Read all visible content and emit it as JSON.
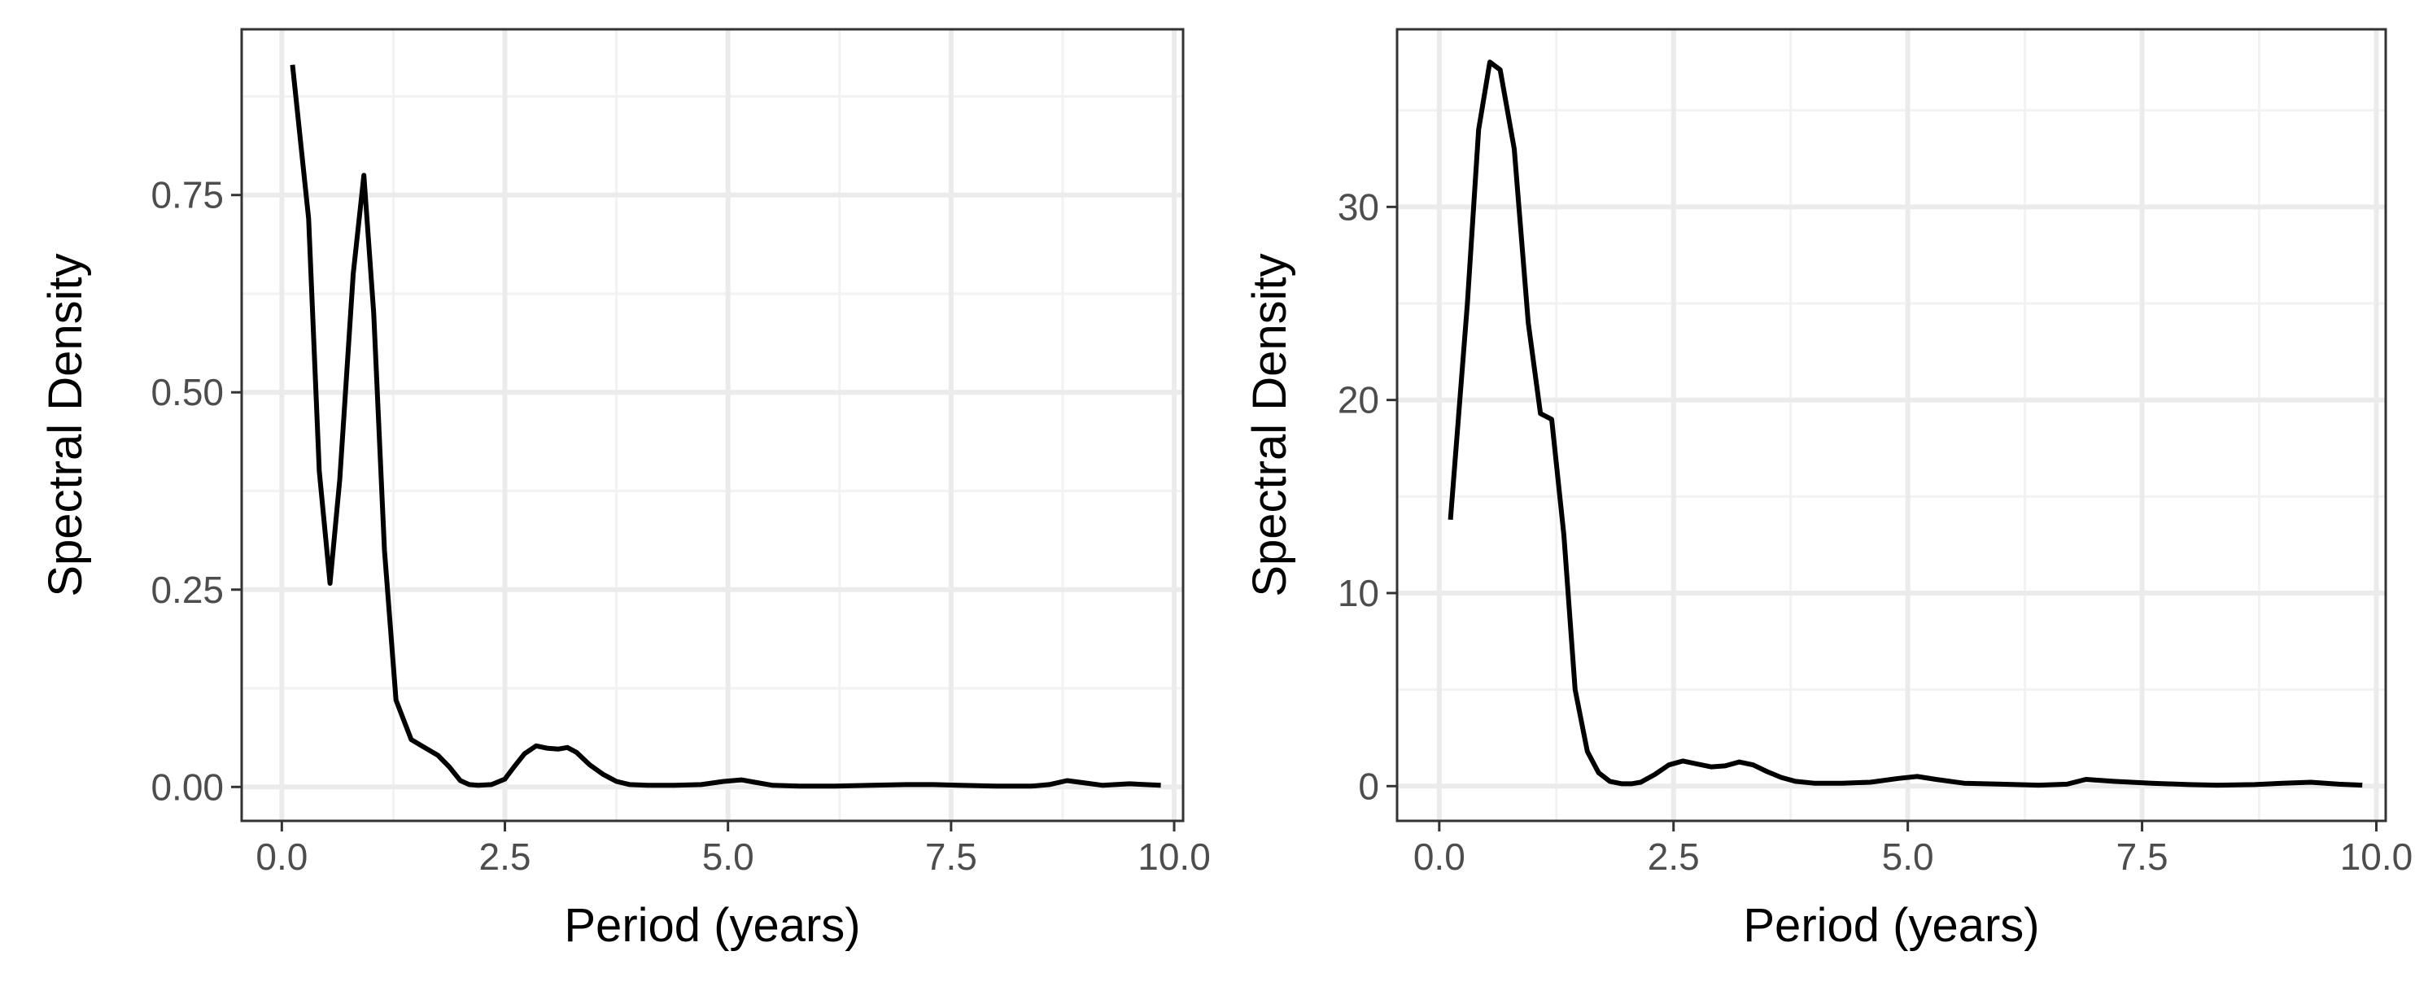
{
  "colors": {
    "background": "#ffffff",
    "panel_border": "#333333",
    "grid_major": "#ebebeb",
    "grid_minor": "#f2f2f2",
    "line": "#000000",
    "tick_text": "#4d4d4d",
    "axis_title": "#000000"
  },
  "chart_data": [
    {
      "type": "line",
      "title": "",
      "xlabel": "Period (years)",
      "ylabel": "Spectral Density",
      "xlim": [
        -0.45,
        10.1
      ],
      "ylim": [
        -0.043,
        0.96
      ],
      "xticks": [
        0,
        2.5,
        5,
        7.5,
        10
      ],
      "xtick_labels": [
        "0.0",
        "2.5",
        "5.0",
        "7.5",
        "10.0"
      ],
      "yticks": [
        0,
        0.25,
        0.5,
        0.75
      ],
      "ytick_labels": [
        "0.00",
        "0.25",
        "0.50",
        "0.75"
      ],
      "grid": true,
      "series": [
        {
          "x": [
            0.12,
            0.3,
            0.42,
            0.54,
            0.65,
            0.8,
            0.92,
            1.03,
            1.15,
            1.28,
            1.45,
            1.6,
            1.75,
            1.88,
            2.0,
            2.1,
            2.2,
            2.35,
            2.5,
            2.6,
            2.72,
            2.85,
            2.98,
            3.1,
            3.2,
            3.3,
            3.45,
            3.6,
            3.75,
            3.9,
            4.1,
            4.4,
            4.7,
            4.95,
            5.15,
            5.3,
            5.5,
            5.8,
            6.2,
            6.6,
            7.0,
            7.3,
            7.6,
            8.0,
            8.4,
            8.6,
            8.8,
            9.0,
            9.2,
            9.5,
            9.85
          ],
          "y": [
            0.915,
            0.72,
            0.4,
            0.258,
            0.39,
            0.65,
            0.775,
            0.6,
            0.3,
            0.11,
            0.06,
            0.05,
            0.04,
            0.025,
            0.008,
            0.003,
            0.002,
            0.003,
            0.01,
            0.025,
            0.042,
            0.052,
            0.049,
            0.048,
            0.05,
            0.044,
            0.028,
            0.016,
            0.007,
            0.003,
            0.002,
            0.002,
            0.003,
            0.007,
            0.009,
            0.006,
            0.002,
            0.001,
            0.001,
            0.002,
            0.003,
            0.003,
            0.002,
            0.001,
            0.001,
            0.003,
            0.008,
            0.005,
            0.002,
            0.004,
            0.002
          ]
        }
      ]
    },
    {
      "type": "line",
      "title": "",
      "xlabel": "Period (years)",
      "ylabel": "Spectral Density",
      "xlim": [
        -0.45,
        10.1
      ],
      "ylim": [
        -1.8,
        39.2
      ],
      "xticks": [
        0,
        2.5,
        5,
        7.5,
        10
      ],
      "xtick_labels": [
        "0.0",
        "2.5",
        "5.0",
        "7.5",
        "10.0"
      ],
      "yticks": [
        0,
        10,
        20,
        30
      ],
      "ytick_labels": [
        "0",
        "10",
        "20",
        "30"
      ],
      "grid": true,
      "series": [
        {
          "x": [
            0.12,
            0.3,
            0.42,
            0.54,
            0.65,
            0.8,
            0.95,
            1.08,
            1.2,
            1.33,
            1.45,
            1.58,
            1.7,
            1.82,
            1.95,
            2.05,
            2.15,
            2.3,
            2.45,
            2.6,
            2.75,
            2.9,
            3.05,
            3.2,
            3.35,
            3.5,
            3.65,
            3.8,
            4.0,
            4.3,
            4.6,
            4.9,
            5.1,
            5.3,
            5.6,
            6.0,
            6.4,
            6.7,
            6.9,
            7.2,
            7.6,
            8.0,
            8.3,
            8.7,
            9.0,
            9.3,
            9.6,
            9.85
          ],
          "y": [
            13.8,
            25.0,
            34.0,
            37.5,
            37.1,
            33.0,
            24.0,
            19.3,
            19.0,
            13.0,
            5.0,
            1.8,
            0.7,
            0.25,
            0.12,
            0.12,
            0.2,
            0.6,
            1.1,
            1.3,
            1.15,
            1.0,
            1.05,
            1.25,
            1.1,
            0.75,
            0.45,
            0.25,
            0.15,
            0.15,
            0.2,
            0.4,
            0.5,
            0.35,
            0.15,
            0.1,
            0.05,
            0.1,
            0.35,
            0.25,
            0.15,
            0.08,
            0.05,
            0.08,
            0.15,
            0.2,
            0.1,
            0.05
          ]
        }
      ]
    }
  ]
}
